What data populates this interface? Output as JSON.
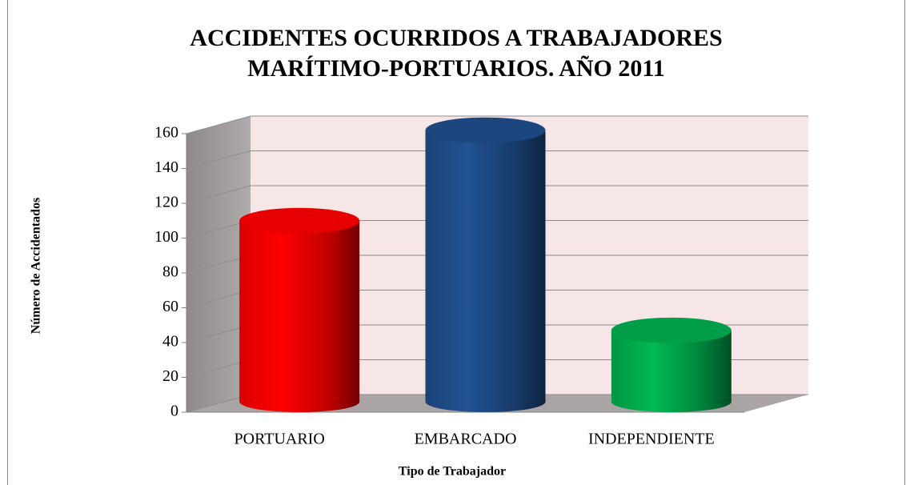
{
  "chart_data": {
    "type": "bar3d",
    "title": [
      "ACCIDENTES OCURRIDOS A TRABAJADORES",
      "MARÍTIMO-PORTUARIOS. AÑO 2011"
    ],
    "x_label": "Tipo de Trabajador",
    "y_label": "Número de Accidentados",
    "categories": [
      "PORTUARIO",
      "EMBARCADO",
      "INDEPENDIENTE"
    ],
    "values": [
      104,
      156,
      41
    ],
    "colors": [
      "#ff0000",
      "#1f4e8c",
      "#00b050"
    ],
    "ylim": [
      0,
      160
    ],
    "yticks": [
      0,
      20,
      40,
      60,
      80,
      100,
      120,
      140,
      160
    ],
    "grid": true
  }
}
